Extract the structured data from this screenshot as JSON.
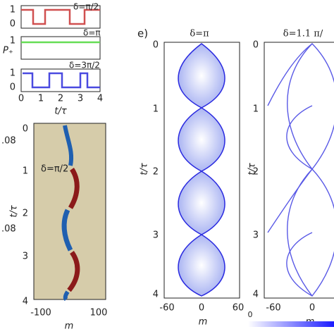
{
  "top_panel": {
    "subplots": [
      {
        "label": "δ=π/2",
        "yticks": [
          "1",
          "0"
        ]
      },
      {
        "label": "δ=π",
        "yticks": [
          "1"
        ]
      },
      {
        "label": "δ=3π/2",
        "yticks": [
          "1",
          "0"
        ]
      }
    ],
    "ylabel": "P₊",
    "xticks": [
      "0",
      "1",
      "2",
      "3",
      "4"
    ],
    "xlabel": "t/τ"
  },
  "heatmap_panel": {
    "label": "δ=π/2",
    "yticks": [
      "0",
      "1",
      "2",
      "3",
      "4"
    ],
    "ylabel": "t/τ",
    "xticks": [
      "-100",
      "100"
    ],
    "xlabel": "m",
    "side_labels": [
      ".08",
      ".08"
    ]
  },
  "panel_e": {
    "label": "e)",
    "plots": [
      {
        "title": "δ=π",
        "yticks": [
          "0",
          "1",
          "2",
          "3",
          "4"
        ],
        "ylabel": "t/τ",
        "xticks": [
          "-60",
          "0",
          "60"
        ],
        "xlabel": "m"
      },
      {
        "title": "δ=1.1 π/",
        "yticks": [
          "0",
          "1",
          "2",
          "3",
          "4"
        ],
        "ylabel": "t/τ",
        "xticks": [
          "-60",
          "0"
        ],
        "xlabel": "m"
      }
    ],
    "colorbar_label": "0"
  }
}
